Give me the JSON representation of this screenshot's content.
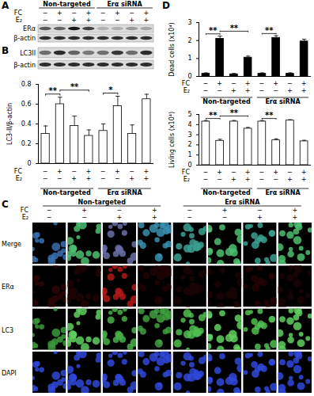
{
  "chart_data": [
    {
      "type": "bar",
      "ylabel": "LC3-II/β-actin",
      "categories": [
        null,
        null,
        null,
        null,
        null,
        null,
        null,
        null
      ],
      "values": [
        0.3,
        0.6,
        0.38,
        0.28,
        0.33,
        0.58,
        0.3,
        0.65
      ],
      "errors": [
        0.08,
        0.07,
        0.1,
        0.06,
        0.07,
        0.1,
        0.09,
        0.05
      ],
      "color": "#ffffff",
      "ylim": [
        0,
        0.8
      ],
      "yticks": [
        0,
        0.2,
        0.4,
        0.6,
        0.8
      ],
      "tick_labels": "y",
      "annotations": [
        {
          "from": 0,
          "to": 1,
          "label": "**"
        },
        {
          "from": 1,
          "to": 3,
          "label": "**"
        },
        {
          "from": 4,
          "to": 5,
          "label": "*"
        }
      ],
      "conditions": [
        {
          "label": "FC",
          "values": [
            "−",
            "+",
            "−",
            "+",
            "−",
            "+",
            "−",
            "+"
          ]
        },
        {
          "label": "E₂",
          "values": [
            "−",
            "−",
            "+",
            "+",
            "−",
            "−",
            "+",
            "+"
          ]
        }
      ],
      "groups": [
        {
          "label": "Non-targeted",
          "from": 0,
          "to": 3
        },
        {
          "label": "Erα siRNA",
          "from": 4,
          "to": 7
        }
      ]
    },
    {
      "type": "bar",
      "ylabel": "Dead cells (x10⁴)",
      "categories": [
        null,
        null,
        null,
        null,
        null,
        null,
        null,
        null
      ],
      "values": [
        0.15,
        2.1,
        0.12,
        1.05,
        0.15,
        2.15,
        0.15,
        1.95
      ],
      "errors": [
        0.05,
        0.15,
        0.05,
        0.08,
        0.05,
        0.12,
        0.05,
        0.12
      ],
      "color": "#000000",
      "ylim": [
        0,
        3
      ],
      "yticks": [
        0,
        1,
        2,
        3
      ],
      "tick_labels": "y",
      "annotations": [
        {
          "from": 0,
          "to": 1,
          "label": "**"
        },
        {
          "from": 1,
          "to": 3,
          "label": "**"
        },
        {
          "from": 4,
          "to": 5,
          "label": "**"
        }
      ],
      "conditions": [
        {
          "label": "FC",
          "values": [
            "−",
            "+",
            "−",
            "+",
            "−",
            "+",
            "−",
            "+"
          ]
        },
        {
          "label": "E₂",
          "values": [
            "−",
            "−",
            "+",
            "+",
            "−",
            "−",
            "+",
            "+"
          ]
        }
      ],
      "groups": [
        {
          "label": "Non-targeted",
          "from": 0,
          "to": 3
        },
        {
          "label": "Erα siRNA",
          "from": 4,
          "to": 7
        }
      ]
    },
    {
      "type": "bar",
      "ylabel": "Living cells (x10⁴)",
      "categories": [
        null,
        null,
        null,
        null,
        null,
        null,
        null,
        null
      ],
      "values": [
        4.3,
        2.4,
        4.3,
        3.6,
        4.3,
        2.45,
        4.4,
        2.35
      ],
      "errors": [
        0.1,
        0.15,
        0.1,
        0.12,
        0.1,
        0.15,
        0.08,
        0.1
      ],
      "color": "#ffffff",
      "ylim": [
        0,
        5
      ],
      "yticks": [
        0,
        1,
        2,
        3,
        4,
        5
      ],
      "tick_labels": "y",
      "annotations": [
        {
          "from": 0,
          "to": 1,
          "label": "**"
        },
        {
          "from": 1,
          "to": 3,
          "label": "**"
        },
        {
          "from": 4,
          "to": 5,
          "label": "**"
        }
      ],
      "conditions": [
        {
          "label": "FC",
          "values": [
            "−",
            "+",
            "−",
            "+",
            "−",
            "+",
            "−",
            "+"
          ]
        },
        {
          "label": "E₂",
          "values": [
            "−",
            "−",
            "+",
            "+",
            "−",
            "−",
            "+",
            "+"
          ]
        }
      ],
      "groups": [
        {
          "label": "Non-targeted",
          "from": 0,
          "to": 3
        },
        {
          "label": "Erα siRNA",
          "from": 4,
          "to": 7
        }
      ]
    }
  ],
  "figure": {
    "A": {
      "letter": "A",
      "groups": [
        {
          "label": "Non-targeted",
          "from": 0,
          "to": 3
        },
        {
          "label": "Erα siRNA",
          "from": 4,
          "to": 7
        }
      ],
      "conditions": [
        {
          "label": "FC",
          "values": [
            "−",
            "+",
            "−",
            "+",
            "−",
            "+",
            "−",
            "+"
          ]
        },
        {
          "label": "E₂",
          "values": [
            "−",
            "−",
            "+",
            "+",
            "−",
            "−",
            "+",
            "+"
          ]
        }
      ],
      "blots": [
        {
          "label": "ERα",
          "intensity": [
            0.6,
            0.55,
            0.9,
            0.7,
            0.2,
            0.2,
            0.3,
            0.25
          ]
        },
        {
          "label": "β-actin",
          "intensity": [
            0.8,
            0.8,
            0.8,
            0.8,
            0.8,
            0.8,
            0.8,
            0.8
          ]
        }
      ]
    },
    "B": {
      "letter": "B",
      "blots": [
        {
          "label": "LC3II",
          "intensity": [
            0.5,
            0.8,
            0.55,
            0.45,
            0.5,
            0.75,
            0.5,
            0.8
          ]
        },
        {
          "label": "β-actin",
          "intensity": [
            0.8,
            0.8,
            0.8,
            0.8,
            0.8,
            0.8,
            0.8,
            0.8
          ]
        }
      ]
    },
    "C": {
      "letter": "C",
      "groups": [
        {
          "label": "Non-targeted",
          "from": 0,
          "to": 3
        },
        {
          "label": "Erα siRNA",
          "from": 4,
          "to": 7
        }
      ],
      "conditions": [
        {
          "label": "FC",
          "values": [
            "−",
            "+",
            "−",
            "+",
            "−",
            "+",
            "−",
            "+"
          ]
        },
        {
          "label": "E₂",
          "values": [
            "−",
            "−",
            "+",
            "+",
            "−",
            "−",
            "+",
            "+"
          ]
        }
      ],
      "rows": [
        {
          "label": "Merge",
          "colors": [
            "#3a6fb0",
            "#4cc070",
            "#6a70a8",
            "#3a8fb0",
            "#3aa090",
            "#4cc070",
            "#3aa090",
            "#4cc070"
          ]
        },
        {
          "label": "ERα",
          "colors": [
            "#2a0505",
            "#200404",
            "#b01818",
            "#200404",
            "#1a0303",
            "#1a0303",
            "#250404",
            "#1a0303"
          ]
        },
        {
          "label": "LC3",
          "colors": [
            "#3a9a3a",
            "#5fd05f",
            "#48b048",
            "#3fa03f",
            "#4fbf4f",
            "#5fd05f",
            "#4fbf4f",
            "#5fd05f"
          ]
        },
        {
          "label": "DAPI",
          "colors": [
            "#3048d8",
            "#3048d8",
            "#3048d8",
            "#3048d8",
            "#3048d8",
            "#3048d8",
            "#3048d8",
            "#3048d8"
          ]
        }
      ]
    },
    "D": {
      "letter": "D"
    }
  }
}
